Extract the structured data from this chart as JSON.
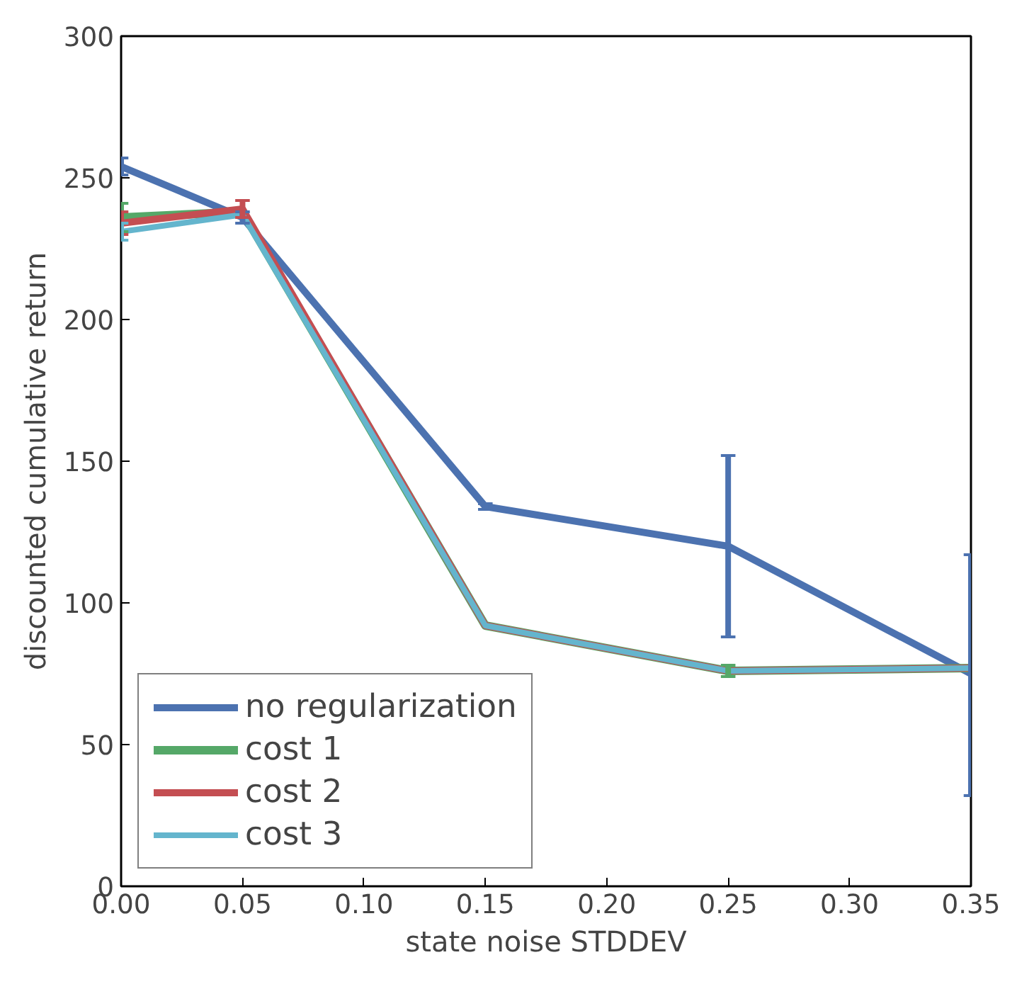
{
  "chart_data": {
    "type": "line",
    "xlabel": "state noise STDDEV",
    "ylabel": "discounted cumulative return",
    "x": [
      0.0,
      0.05,
      0.15,
      0.25,
      0.35
    ],
    "series": [
      {
        "name": "no regularization",
        "color": "#4c72b0",
        "values": [
          254,
          236,
          134,
          120,
          75
        ],
        "errors": [
          3,
          2,
          1,
          [
            88,
            152
          ],
          [
            32,
            117
          ]
        ]
      },
      {
        "name": "cost 1",
        "color": "#55a868",
        "values": [
          236,
          238,
          92,
          76,
          77
        ],
        "errors": [
          5,
          null,
          null,
          2,
          null
        ]
      },
      {
        "name": "cost 2",
        "color": "#c44e52",
        "values": [
          234,
          239,
          92,
          76,
          77
        ],
        "errors": [
          4,
          3,
          null,
          null,
          null
        ]
      },
      {
        "name": "cost 3",
        "color": "#64b5cd",
        "values": [
          231,
          237,
          92,
          76,
          77
        ],
        "errors": [
          3,
          null,
          null,
          null,
          null
        ]
      }
    ],
    "xlim": [
      0.0,
      0.35
    ],
    "ylim": [
      0,
      300
    ],
    "xticks": [
      {
        "value": 0.0,
        "label": "0.00"
      },
      {
        "value": 0.05,
        "label": "0.05"
      },
      {
        "value": 0.1,
        "label": "0.10"
      },
      {
        "value": 0.15,
        "label": "0.15"
      },
      {
        "value": 0.2,
        "label": "0.20"
      },
      {
        "value": 0.25,
        "label": "0.25"
      },
      {
        "value": 0.3,
        "label": "0.30"
      },
      {
        "value": 0.35,
        "label": "0.35"
      }
    ],
    "yticks": [
      0,
      50,
      100,
      150,
      200,
      250,
      300
    ],
    "grid": false,
    "legend": "bottom left",
    "marker": "none",
    "line_style": "solid"
  }
}
